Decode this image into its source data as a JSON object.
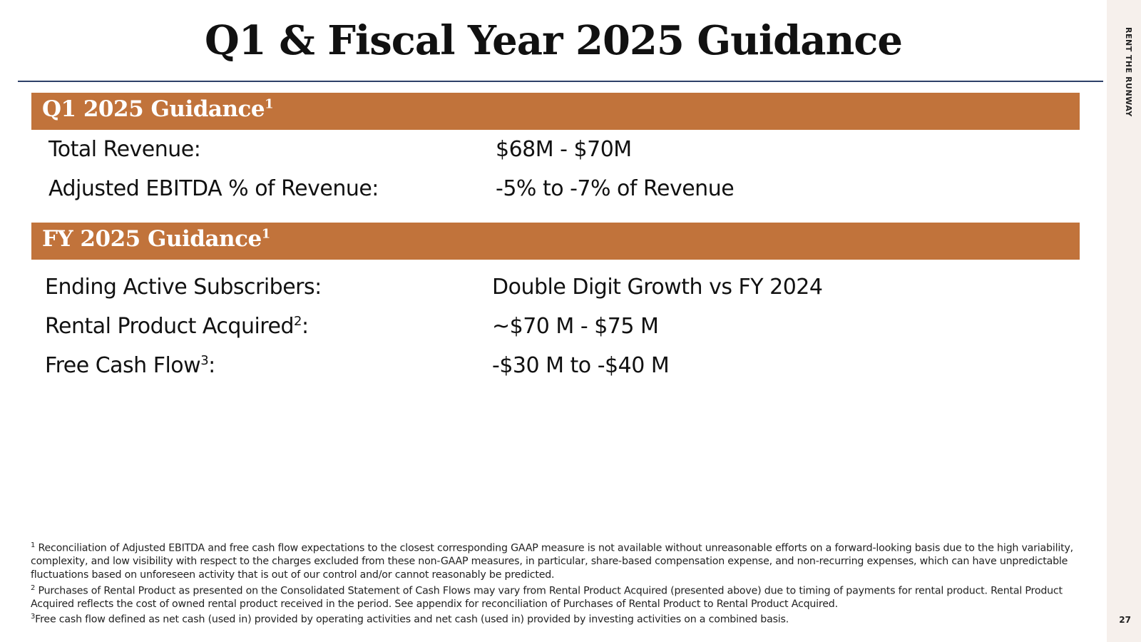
{
  "title": "Q1 & Fiscal Year 2025 Guidance",
  "brand": "RENT THE RUNWAY",
  "page_number": "27",
  "q1": {
    "heading": "Q1 2025 Guidance",
    "heading_sup": "1",
    "rows": [
      {
        "label": "Total Revenue:",
        "value": "$68M - $70M"
      },
      {
        "label": "Adjusted EBITDA % of Revenue:",
        "value": "-5% to -7% of Revenue"
      }
    ]
  },
  "fy": {
    "heading": "FY 2025 Guidance",
    "heading_sup": "1",
    "rows": [
      {
        "label": "Ending Active Subscribers",
        "sup": "",
        "value": "Double Digit Growth vs FY 2024"
      },
      {
        "label": "Rental Product Acquired",
        "sup": "2",
        "value": "~$70 M - $75 M"
      },
      {
        "label": "Free Cash Flow",
        "sup": "3",
        "value": "-$30 M to -$40 M"
      }
    ]
  },
  "footnotes": [
    {
      "marker": "1",
      "text": "Reconciliation of Adjusted EBITDA and free cash flow expectations to the closest corresponding GAAP measure is not available without unreasonable efforts on a forward-looking basis due to the high variability, complexity, and low visibility with respect to the charges excluded from these non-GAAP measures, in particular, share-based compensation expense, and non-recurring expenses, which can have unpredictable fluctuations based on unforeseen activity that is out of our control and/or cannot reasonably be predicted."
    },
    {
      "marker": "2",
      "text": "Purchases of Rental Product as presented on the Consolidated Statement of Cash Flows may vary from Rental Product Acquired (presented above) due to timing of payments for rental product. Rental Product Acquired reflects the cost of owned rental product received in the period. See appendix for reconciliation of Purchases of Rental Product to Rental Product Acquired."
    },
    {
      "marker": "3",
      "text": "Free cash flow defined as net cash (used in) provided by operating activities and net cash (used in) provided by investing activities on a combined basis."
    }
  ],
  "colors": {
    "section_bar": "#c1733b",
    "rule": "#2d4068",
    "sidebar": "#f6f0ec"
  }
}
